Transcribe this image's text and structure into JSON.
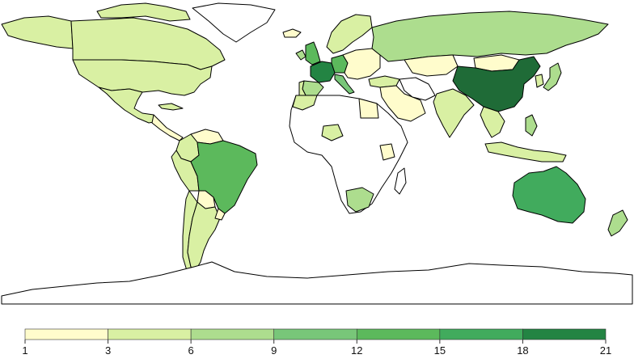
{
  "legend": {
    "breaks": [
      "1",
      "3",
      "6",
      "9",
      "12",
      "15",
      "18",
      "21"
    ],
    "colors": [
      "#fffccc",
      "#d9f0a3",
      "#addd8e",
      "#78c679",
      "#5cb95c",
      "#41ab5d",
      "#238443"
    ]
  },
  "palette": {
    "none": "#ffffff",
    "c1": "#fffccc",
    "c2": "#d9f0a3",
    "c3": "#addd8e",
    "c4": "#78c679",
    "c5": "#5cb95c",
    "c6": "#41ab5d",
    "c7": "#238443",
    "c8": "#1f6b37"
  },
  "regions": [
    {
      "name": "canada",
      "class": "c2"
    },
    {
      "name": "alaska",
      "class": "c2"
    },
    {
      "name": "greenland",
      "class": "none"
    },
    {
      "name": "canadian-arctic-islands",
      "class": "c2"
    },
    {
      "name": "united-states",
      "class": "c2"
    },
    {
      "name": "mexico",
      "class": "c2"
    },
    {
      "name": "central-america",
      "class": "c1"
    },
    {
      "name": "cuba",
      "class": "c2"
    },
    {
      "name": "colombia",
      "class": "c2"
    },
    {
      "name": "venezuela",
      "class": "c1"
    },
    {
      "name": "peru",
      "class": "c2"
    },
    {
      "name": "brazil",
      "class": "c5"
    },
    {
      "name": "bolivia",
      "class": "c1"
    },
    {
      "name": "chile",
      "class": "c2"
    },
    {
      "name": "argentina",
      "class": "c2"
    },
    {
      "name": "uruguay",
      "class": "c1"
    },
    {
      "name": "iceland",
      "class": "c1"
    },
    {
      "name": "united-kingdom",
      "class": "c5"
    },
    {
      "name": "ireland",
      "class": "c3"
    },
    {
      "name": "france",
      "class": "c7"
    },
    {
      "name": "spain",
      "class": "c3"
    },
    {
      "name": "portugal",
      "class": "c2"
    },
    {
      "name": "germany",
      "class": "c5"
    },
    {
      "name": "italy",
      "class": "c4"
    },
    {
      "name": "scandinavia",
      "class": "c2"
    },
    {
      "name": "eastern-europe",
      "class": "c1"
    },
    {
      "name": "russia",
      "class": "c3"
    },
    {
      "name": "kazakhstan",
      "class": "c1"
    },
    {
      "name": "mongolia",
      "class": "c1"
    },
    {
      "name": "china",
      "class": "c8"
    },
    {
      "name": "japan",
      "class": "c3"
    },
    {
      "name": "korea",
      "class": "c2"
    },
    {
      "name": "turkey",
      "class": "c2"
    },
    {
      "name": "middle-east",
      "class": "c1"
    },
    {
      "name": "iran",
      "class": "none"
    },
    {
      "name": "india",
      "class": "c2"
    },
    {
      "name": "southeast-asia",
      "class": "c2"
    },
    {
      "name": "indonesia",
      "class": "c2"
    },
    {
      "name": "philippines",
      "class": "c3"
    },
    {
      "name": "australia",
      "class": "c6"
    },
    {
      "name": "new-zealand",
      "class": "c3"
    },
    {
      "name": "africa",
      "class": "none"
    },
    {
      "name": "morocco",
      "class": "c2"
    },
    {
      "name": "egypt",
      "class": "c1"
    },
    {
      "name": "nigeria",
      "class": "c2"
    },
    {
      "name": "kenya",
      "class": "c1"
    },
    {
      "name": "south-africa",
      "class": "c3"
    },
    {
      "name": "madagascar",
      "class": "none"
    },
    {
      "name": "antarctica",
      "class": "none"
    }
  ]
}
